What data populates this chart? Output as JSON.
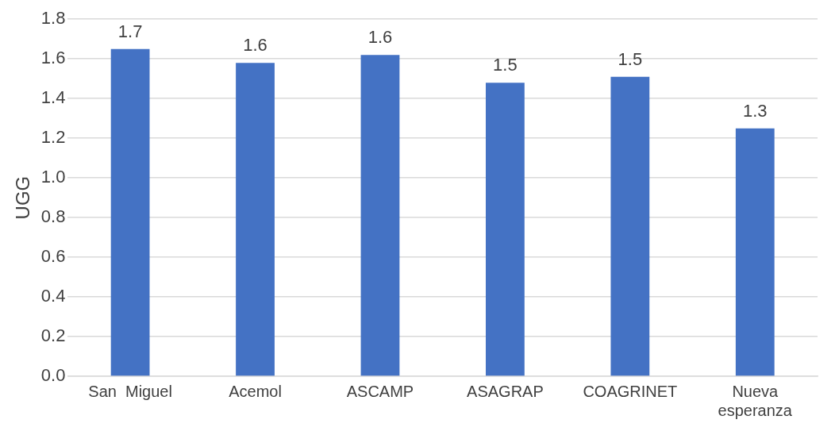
{
  "chart_data": {
    "type": "bar",
    "ylabel": "UGG",
    "categories": [
      "San  Miguel",
      "Acemol",
      "ASCAMP",
      "ASAGRAP",
      "COAGRINET",
      "Nueva esperanza"
    ],
    "values": [
      1.65,
      1.58,
      1.62,
      1.48,
      1.51,
      1.25
    ],
    "value_labels": [
      "1.7",
      "1.6",
      "1.6",
      "1.5",
      "1.5",
      "1.3"
    ],
    "color": "#4472c4",
    "ylim": [
      0,
      1.8
    ],
    "yticks": [
      {
        "value": 0,
        "label": "0.0"
      },
      {
        "value": 0.2,
        "label": "0.2"
      },
      {
        "value": 0.4,
        "label": "0.4"
      },
      {
        "value": 0.6,
        "label": "0.6"
      },
      {
        "value": 0.8,
        "label": "0.8"
      },
      {
        "value": 1,
        "label": "1.0"
      },
      {
        "value": 1.2,
        "label": "1.2"
      },
      {
        "value": 1.4,
        "label": "1.4"
      },
      {
        "value": 1.6,
        "label": "1.6"
      },
      {
        "value": 1.8,
        "label": "1.8"
      }
    ],
    "grid": "y",
    "legend": false
  }
}
